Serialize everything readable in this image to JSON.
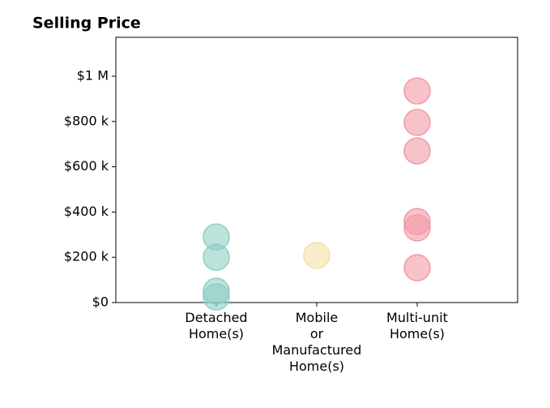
{
  "chart_data": {
    "type": "strip",
    "title": "Selling Price",
    "categories": [
      "Detached\nHome(s)",
      "Mobile\nor\nManufactured\nHome(s)",
      "Multi-unit\nHome(s)"
    ],
    "values": [
      [
        290000,
        200000,
        50000,
        25000
      ],
      [
        208000
      ],
      [
        935000,
        796000,
        670000,
        358000,
        330000,
        154000
      ]
    ],
    "colors": [
      "#8fcfc4",
      "#f3dfa8",
      "#f19aa6"
    ],
    "xlim": [
      -1,
      3
    ],
    "ylim": [
      0,
      1172000
    ],
    "yticks": [
      {
        "value": 0,
        "label": "$0"
      },
      {
        "value": 200000,
        "label": "$200 k"
      },
      {
        "value": 400000,
        "label": "$400 k"
      },
      {
        "value": 600000,
        "label": "$600 k"
      },
      {
        "value": 800000,
        "label": "$800 k"
      },
      {
        "value": 1000000,
        "label": "$1 M"
      }
    ]
  }
}
